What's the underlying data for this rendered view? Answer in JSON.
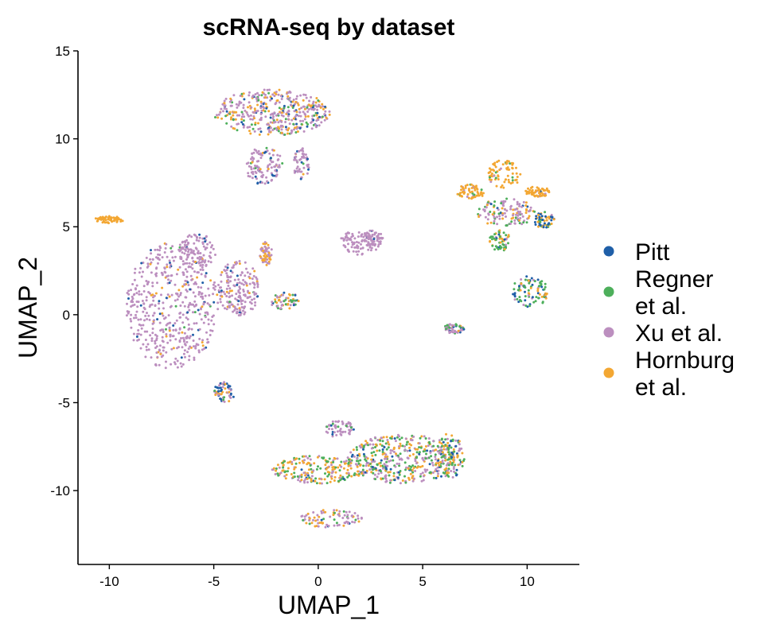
{
  "chart_data": {
    "type": "scatter",
    "title": "scRNA-seq by dataset",
    "xlabel": "UMAP_1",
    "ylabel": "UMAP_2",
    "xlim": [
      -11.5,
      12.5
    ],
    "ylim": [
      -14.2,
      15
    ],
    "x_ticks": [
      -10,
      -5,
      0,
      5,
      10
    ],
    "y_ticks": [
      -10,
      -5,
      0,
      5,
      10,
      15
    ],
    "grid": false,
    "legend_position": "right",
    "series": [
      {
        "name": "Pitt",
        "legend_lines": [
          "Pitt"
        ],
        "color": "#1f5fa8"
      },
      {
        "name": "Regner et al.",
        "legend_lines": [
          "Regner",
          "et al."
        ],
        "color": "#4daf5b"
      },
      {
        "name": "Xu et al.",
        "legend_lines": [
          "Xu et al."
        ],
        "color": "#bc8fbf"
      },
      {
        "name": "Hornburg et al.",
        "legend_lines": [
          "Hornburg",
          "et al."
        ],
        "color": "#f3a733"
      }
    ],
    "clusters": [
      {
        "cx": -7.0,
        "cy": 0.5,
        "rx": 2.2,
        "ry": 3.6,
        "weights": [
          0.05,
          0.01,
          0.88,
          0.06
        ]
      },
      {
        "cx": -5.8,
        "cy": 3.6,
        "rx": 0.9,
        "ry": 1.0,
        "weights": [
          0.02,
          0.01,
          0.94,
          0.03
        ]
      },
      {
        "cx": -3.8,
        "cy": 1.5,
        "rx": 1.0,
        "ry": 1.6,
        "weights": [
          0.04,
          0.02,
          0.86,
          0.08
        ]
      },
      {
        "cx": -2.2,
        "cy": 11.5,
        "rx": 2.8,
        "ry": 1.3,
        "weights": [
          0.1,
          0.12,
          0.55,
          0.23
        ]
      },
      {
        "cx": -2.6,
        "cy": 8.5,
        "rx": 0.9,
        "ry": 1.1,
        "weights": [
          0.1,
          0.1,
          0.7,
          0.1
        ]
      },
      {
        "cx": -0.8,
        "cy": 8.6,
        "rx": 0.4,
        "ry": 0.9,
        "weights": [
          0.15,
          0.05,
          0.7,
          0.1
        ]
      },
      {
        "cx": -10.0,
        "cy": 5.4,
        "rx": 0.7,
        "ry": 0.2,
        "weights": [
          0.0,
          0.0,
          0.0,
          1.0
        ]
      },
      {
        "cx": 2.0,
        "cy": 4.1,
        "rx": 1.0,
        "ry": 0.7,
        "weights": [
          0.0,
          0.0,
          1.0,
          0.0
        ]
      },
      {
        "cx": 2.6,
        "cy": 4.3,
        "rx": 0.5,
        "ry": 0.5,
        "weights": [
          0.02,
          0.0,
          0.98,
          0.0
        ]
      },
      {
        "cx": -2.5,
        "cy": 3.5,
        "rx": 0.3,
        "ry": 0.7,
        "weights": [
          0.0,
          0.0,
          0.5,
          0.5
        ]
      },
      {
        "cx": -4.5,
        "cy": -4.4,
        "rx": 0.5,
        "ry": 0.6,
        "weights": [
          0.45,
          0.05,
          0.35,
          0.15
        ]
      },
      {
        "cx": -1.6,
        "cy": 0.8,
        "rx": 0.7,
        "ry": 0.5,
        "weights": [
          0.05,
          0.25,
          0.4,
          0.3
        ]
      },
      {
        "cx": 4.0,
        "cy": -8.2,
        "rx": 2.7,
        "ry": 1.4,
        "weights": [
          0.08,
          0.3,
          0.4,
          0.22
        ]
      },
      {
        "cx": 0.0,
        "cy": -8.8,
        "rx": 2.2,
        "ry": 0.8,
        "weights": [
          0.05,
          0.25,
          0.25,
          0.45
        ]
      },
      {
        "cx": 6.3,
        "cy": -8.0,
        "rx": 0.7,
        "ry": 1.3,
        "weights": [
          0.12,
          0.35,
          0.2,
          0.33
        ]
      },
      {
        "cx": 1.0,
        "cy": -6.5,
        "rx": 0.7,
        "ry": 0.5,
        "weights": [
          0.05,
          0.1,
          0.8,
          0.05
        ]
      },
      {
        "cx": 0.6,
        "cy": -11.6,
        "rx": 1.5,
        "ry": 0.5,
        "weights": [
          0.05,
          0.15,
          0.5,
          0.3
        ]
      },
      {
        "cx": 9.0,
        "cy": 5.8,
        "rx": 1.4,
        "ry": 0.8,
        "weights": [
          0.1,
          0.15,
          0.55,
          0.2
        ]
      },
      {
        "cx": 8.9,
        "cy": 8.0,
        "rx": 0.8,
        "ry": 0.8,
        "weights": [
          0.02,
          0.05,
          0.08,
          0.85
        ]
      },
      {
        "cx": 7.3,
        "cy": 7.0,
        "rx": 0.7,
        "ry": 0.4,
        "weights": [
          0.02,
          0.05,
          0.05,
          0.88
        ]
      },
      {
        "cx": 10.5,
        "cy": 7.0,
        "rx": 0.6,
        "ry": 0.3,
        "weights": [
          0.02,
          0.03,
          0.05,
          0.9
        ]
      },
      {
        "cx": 10.8,
        "cy": 5.4,
        "rx": 0.5,
        "ry": 0.5,
        "weights": [
          0.4,
          0.1,
          0.1,
          0.4
        ]
      },
      {
        "cx": 10.1,
        "cy": 1.3,
        "rx": 0.9,
        "ry": 0.9,
        "weights": [
          0.2,
          0.45,
          0.1,
          0.25
        ]
      },
      {
        "cx": 6.5,
        "cy": -0.8,
        "rx": 0.5,
        "ry": 0.3,
        "weights": [
          0.1,
          0.2,
          0.65,
          0.05
        ]
      },
      {
        "cx": 8.7,
        "cy": 4.2,
        "rx": 0.5,
        "ry": 0.6,
        "weights": [
          0.05,
          0.6,
          0.05,
          0.3
        ]
      }
    ]
  }
}
